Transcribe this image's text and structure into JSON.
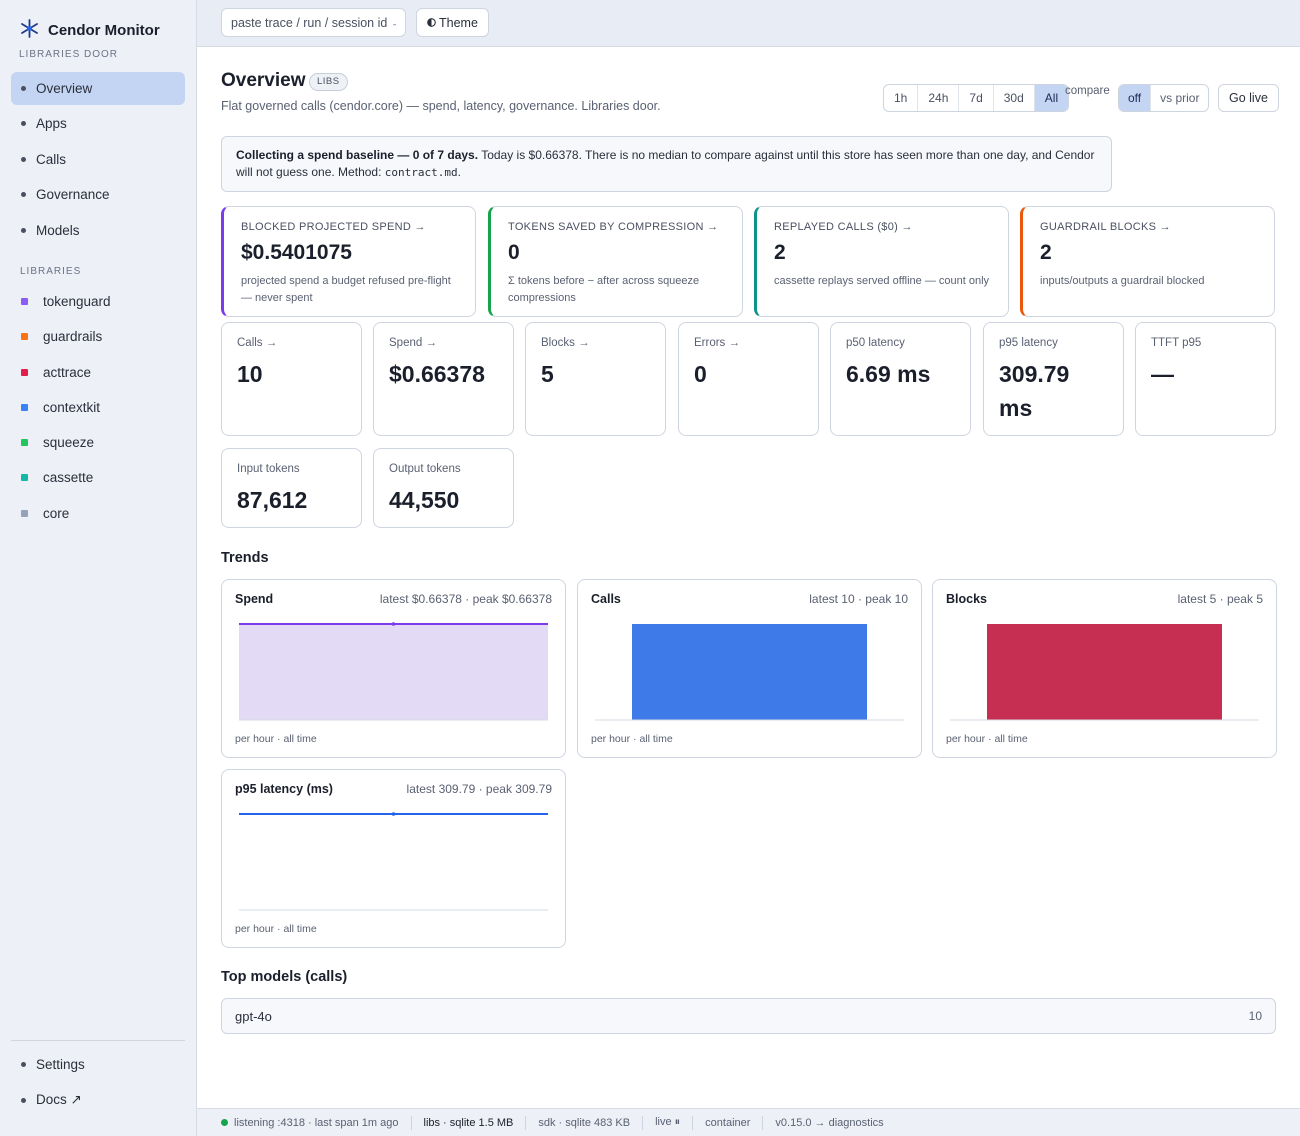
{
  "app": {
    "name": "Cendor Monitor",
    "subtitle": "LIBRARIES DOOR",
    "logo_icon": "asterisk-network-icon",
    "accent": "#2563eb"
  },
  "sidebar": {
    "nav": [
      {
        "label": "Overview",
        "active": true
      },
      {
        "label": "Apps"
      },
      {
        "label": "Calls"
      },
      {
        "label": "Governance"
      },
      {
        "label": "Models"
      }
    ],
    "libraries_label": "LIBRARIES",
    "libraries": [
      {
        "label": "tokenguard",
        "color": "#8b5cf6"
      },
      {
        "label": "guardrails",
        "color": "#f97316"
      },
      {
        "label": "acttrace",
        "color": "#e11d48"
      },
      {
        "label": "contextkit",
        "color": "#3b82f6"
      },
      {
        "label": "squeeze",
        "color": "#22c55e"
      },
      {
        "label": "cassette",
        "color": "#14b8a6"
      },
      {
        "label": "core",
        "color": "#94a3b8"
      }
    ],
    "bottom": [
      {
        "label": "Settings"
      },
      {
        "label": "Docs ↗"
      }
    ]
  },
  "topbar": {
    "trace_placeholder": "paste trace / run / session id →",
    "theme_label": "Theme",
    "theme_icon": "half-circle-icon"
  },
  "header": {
    "title": "Overview",
    "badge": "LIBS",
    "subtitle": "Flat governed calls (cendor.core) — spend, latency, governance. Libraries door.",
    "ranges": [
      "1h",
      "24h",
      "7d",
      "30d",
      "All"
    ],
    "range_selected": "All",
    "compare_label": "compare",
    "compare_options": [
      "off",
      "vs prior"
    ],
    "compare_selected": "off",
    "golive_label": "Go live"
  },
  "notice": {
    "bold": "Collecting a spend baseline — 0 of 7 days.",
    "text": " Today is $0.66378. There is no median to compare against until this store has seen more than one day, and Cendor will not guess one. Method: ",
    "code": "contract.md",
    "end": "."
  },
  "kpis": [
    {
      "label": "BLOCKED PROJECTED SPEND →",
      "value": "$0.5401075",
      "desc": "projected spend a budget refused pre-flight — never spent",
      "accent": "#7c3aed"
    },
    {
      "label": "TOKENS SAVED BY COMPRESSION →",
      "value": "0",
      "desc": "Σ tokens before − after across squeeze compressions",
      "accent": "#16a34a"
    },
    {
      "label": "REPLAYED CALLS ($0) →",
      "value": "2",
      "desc": "cassette replays served offline — count only",
      "accent": "#0d9488"
    },
    {
      "label": "GUARDRAIL BLOCKS →",
      "value": "2",
      "desc": "inputs/outputs a guardrail blocked",
      "accent": "#ea580c"
    }
  ],
  "stats": [
    {
      "label": "Calls →",
      "value": "10"
    },
    {
      "label": "Spend →",
      "value": "$0.66378"
    },
    {
      "label": "Blocks →",
      "value": "5"
    },
    {
      "label": "Errors →",
      "value": "0"
    },
    {
      "label": "p50 latency",
      "value": "6.69 ms"
    },
    {
      "label": "p95 latency",
      "value": "309.79 ms"
    },
    {
      "label": "TTFT p95",
      "value": "—"
    },
    {
      "label": "Input tokens",
      "value": "87,612"
    },
    {
      "label": "Output tokens",
      "value": "44,550"
    }
  ],
  "trends_title": "Trends",
  "trends": [
    {
      "title": "Spend",
      "meta": "latest $0.66378 · peak $0.66378",
      "foot": "per hour · all time",
      "type": "area",
      "color": "#7c3aed",
      "fill": "#e3dbf5",
      "values": [
        0.66378,
        0.66378
      ]
    },
    {
      "title": "Calls",
      "meta": "latest 10 · peak 10",
      "foot": "per hour · all time",
      "type": "bar",
      "color": "#3f7be8",
      "values": [
        10
      ]
    },
    {
      "title": "Blocks",
      "meta": "latest 5 · peak 5",
      "foot": "per hour · all time",
      "type": "bar",
      "color": "#c72f52",
      "values": [
        5
      ]
    },
    {
      "title": "p95 latency (ms)",
      "meta": "latest 309.79 · peak 309.79",
      "foot": "per hour · all time",
      "type": "line",
      "color": "#2563eb",
      "values": [
        309.79,
        309.79
      ]
    }
  ],
  "top_models_title": "Top models (calls)",
  "top_models": [
    {
      "name": "gpt-4o",
      "count": "10"
    }
  ],
  "statusbar": {
    "listening": "listening :4318 · last span 1m ago",
    "libs": "libs · sqlite 1.5 MB",
    "sdk": "sdk · sqlite 483 KB",
    "live": "live ⏸",
    "container": "container",
    "version": "v0.15.0 → diagnostics"
  }
}
